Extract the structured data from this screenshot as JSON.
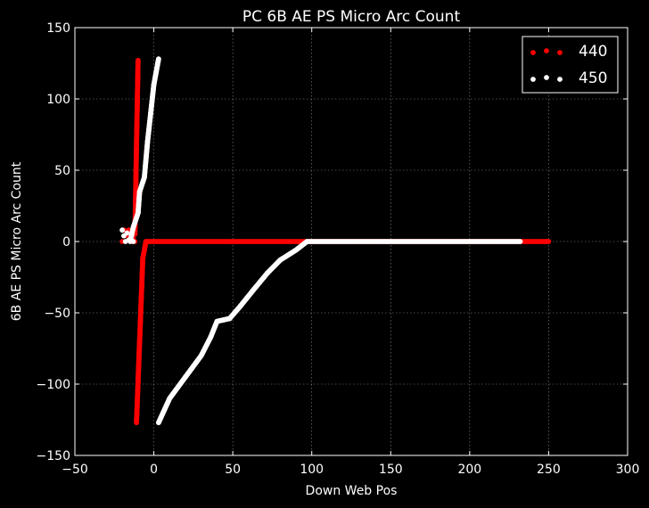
{
  "chart_data": {
    "type": "scatter",
    "title": "PC 6B AE PS Micro Arc Count",
    "xlabel": "Down Web Pos",
    "ylabel": "6B AE PS Micro Arc Count",
    "xlim": [
      -50,
      300
    ],
    "ylim": [
      -150,
      150
    ],
    "x_ticks": [
      -50,
      0,
      50,
      100,
      150,
      200,
      250,
      300
    ],
    "y_ticks": [
      -150,
      -100,
      -50,
      0,
      50,
      100,
      150
    ],
    "x_tick_labels": [
      "−50",
      "0",
      "50",
      "100",
      "150",
      "200",
      "250",
      "300"
    ],
    "y_tick_labels": [
      "−150",
      "−100",
      "−50",
      "0",
      "50",
      "100",
      "150"
    ],
    "grid": true,
    "legend_position": "top-right",
    "background": "#000000",
    "series": [
      {
        "name": "440",
        "color": "#ff0000",
        "segments": [
          {
            "from": [
              -12,
              5
            ],
            "to": [
              -10,
              127
            ],
            "step": 1
          },
          {
            "from": [
              -11,
              -127
            ],
            "to": [
              -7,
              -12
            ],
            "step": 1
          },
          {
            "from": [
              -7,
              -12
            ],
            "to": [
              -5,
              0
            ],
            "step": 1
          },
          {
            "from": [
              -5,
              0
            ],
            "to": [
              250,
              0
            ],
            "step": 1.5
          }
        ],
        "points": [
          [
            -20,
            0
          ],
          [
            -19,
            8
          ],
          [
            -18,
            4
          ],
          [
            -16,
            8
          ],
          [
            -15,
            3
          ],
          [
            -14,
            0
          ],
          [
            -13,
            2
          ],
          [
            -12,
            0
          ]
        ]
      },
      {
        "name": "450",
        "color": "#ffffff",
        "segments": [
          {
            "from": [
              -15,
              0
            ],
            "to": [
              -13,
              10
            ],
            "step": 1
          },
          {
            "from": [
              -13,
              10
            ],
            "to": [
              -10,
              20
            ],
            "step": 1
          },
          {
            "from": [
              -10,
              20
            ],
            "to": [
              -9,
              35
            ],
            "step": 1
          },
          {
            "from": [
              -9,
              35
            ],
            "to": [
              -6,
              45
            ],
            "step": 1
          },
          {
            "from": [
              -6,
              45
            ],
            "to": [
              -4,
              70
            ],
            "step": 1
          },
          {
            "from": [
              -4,
              70
            ],
            "to": [
              -2,
              90
            ],
            "step": 1
          },
          {
            "from": [
              -2,
              90
            ],
            "to": [
              0,
              110
            ],
            "step": 1
          },
          {
            "from": [
              0,
              110
            ],
            "to": [
              3,
              128
            ],
            "step": 1
          },
          {
            "from": [
              3,
              -127
            ],
            "to": [
              10,
              -110
            ],
            "step": 1
          },
          {
            "from": [
              10,
              -110
            ],
            "to": [
              20,
              -95
            ],
            "step": 1
          },
          {
            "from": [
              20,
              -95
            ],
            "to": [
              30,
              -80
            ],
            "step": 1
          },
          {
            "from": [
              30,
              -80
            ],
            "to": [
              36,
              -67
            ],
            "step": 1
          },
          {
            "from": [
              36,
              -67
            ],
            "to": [
              40,
              -56
            ],
            "step": 1
          },
          {
            "from": [
              40,
              -56
            ],
            "to": [
              48,
              -54
            ],
            "step": 1
          },
          {
            "from": [
              48,
              -54
            ],
            "to": [
              55,
              -45
            ],
            "step": 1
          },
          {
            "from": [
              55,
              -45
            ],
            "to": [
              63,
              -34
            ],
            "step": 1
          },
          {
            "from": [
              63,
              -34
            ],
            "to": [
              72,
              -22
            ],
            "step": 1
          },
          {
            "from": [
              72,
              -22
            ],
            "to": [
              80,
              -13
            ],
            "step": 1
          },
          {
            "from": [
              80,
              -13
            ],
            "to": [
              90,
              -6
            ],
            "step": 1
          },
          {
            "from": [
              90,
              -6
            ],
            "to": [
              97,
              0
            ],
            "step": 1
          },
          {
            "from": [
              97,
              0
            ],
            "to": [
              232,
              0
            ],
            "step": 1.5
          }
        ],
        "points": [
          [
            -20,
            8
          ],
          [
            -19,
            4
          ],
          [
            -18,
            0
          ],
          [
            -17,
            6
          ],
          [
            -16,
            1
          ],
          [
            -14,
            5
          ],
          [
            -13,
            0
          ]
        ]
      }
    ]
  }
}
